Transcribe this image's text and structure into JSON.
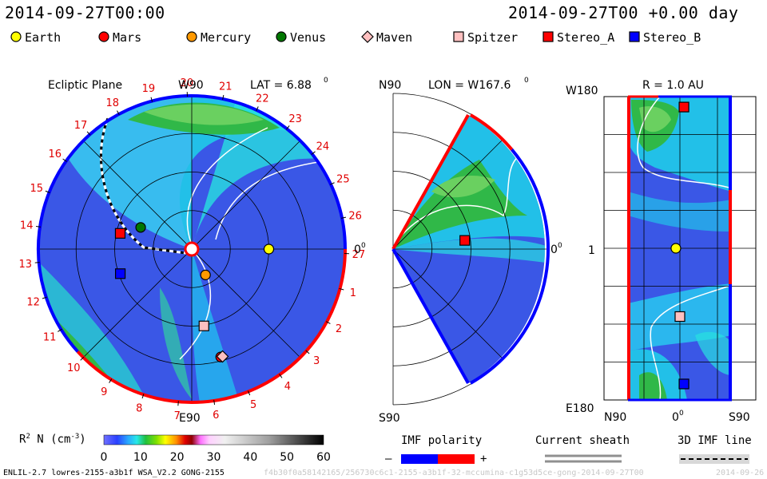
{
  "header": {
    "left_datetime": "2014-09-27T00:00",
    "right_datetime": "2014-09-27T00 +0.00 day"
  },
  "legend": [
    {
      "name": "Earth",
      "shape": "circle",
      "color": "#ffff00"
    },
    {
      "name": "Mars",
      "shape": "circle",
      "color": "#ff0000"
    },
    {
      "name": "Mercury",
      "shape": "circle",
      "color": "#ff9900"
    },
    {
      "name": "Venus",
      "shape": "circle",
      "color": "#007700"
    },
    {
      "name": "Maven",
      "shape": "diamond",
      "color": "#ffc0c0"
    },
    {
      "name": "Spitzer",
      "shape": "square",
      "color": "#ffc0c0"
    },
    {
      "name": "Stereo_A",
      "shape": "square",
      "color": "#ff0000"
    },
    {
      "name": "Stereo_B",
      "shape": "square",
      "color": "#0000ff"
    }
  ],
  "panels": {
    "ecliptic": {
      "title": "Ecliptic Plane",
      "top_label": "W90",
      "bottom_label": "E90",
      "right_label": "0",
      "right_sup": "0",
      "lat_label": "LAT = 6.88",
      "lat_sup": "0",
      "carrington_labels": [
        "19",
        "20",
        "21",
        "22",
        "23",
        "24",
        "25",
        "26",
        "27",
        "1",
        "2",
        "3",
        "4",
        "5",
        "6",
        "7",
        "8",
        "9",
        "10",
        "11",
        "12",
        "13",
        "14",
        "15",
        "16",
        "17",
        "18"
      ]
    },
    "meridional": {
      "top_label": "N90",
      "bottom_label": "S90",
      "lon_label": "LON = W167.6",
      "lon_sup": "0",
      "right_label": "0",
      "right_sup": "0"
    },
    "radial": {
      "title": "R = 1.0 AU",
      "top_left": "W180",
      "mid_left": "1",
      "bottom_left": "E180",
      "bottom_n": "N90",
      "bottom_zero": "0",
      "bottom_zero_sup": "0",
      "bottom_s": "S90"
    }
  },
  "colorbar": {
    "label": "R",
    "label_sup": "2",
    "label_rest": "N (cm",
    "label_exp": "-3",
    "label_close": ")",
    "ticks": [
      "0",
      "10",
      "20",
      "30",
      "40",
      "50",
      "60"
    ],
    "range": [
      0,
      60
    ]
  },
  "imf": {
    "title": "IMF polarity",
    "minus": "–",
    "plus": "+",
    "neg_color": "#0000ff",
    "pos_color": "#ff0000"
  },
  "current_sheath": {
    "title": "Current sheath"
  },
  "imf_line": {
    "title": "3D IMF line"
  },
  "footer": {
    "model": "ENLIL-2.7 lowres-2155-a3b1f WSA_V2.2 GONG-2155",
    "run_id": "f4b30f0a58142165/256730c6c1-2155-a3b1f-32-mccumina-c1g53d5ce-gong-2014-09-27T00",
    "date_stub": "2014-09-26"
  },
  "chart_data": [
    {
      "type": "heatmap",
      "name": "Ecliptic plane density",
      "quantity": "R^2 N (cm^-3)",
      "scale_range": [
        0,
        60
      ],
      "grid_radii_au": [
        0.5,
        1.0,
        1.5,
        2.0
      ],
      "objects": [
        {
          "name": "Earth",
          "angle_deg": 0,
          "r_au": 1.0
        },
        {
          "name": "Mercury",
          "angle_deg": -62,
          "r_au": 0.38
        },
        {
          "name": "Venus",
          "angle_deg": 157,
          "r_au": 0.72
        },
        {
          "name": "Mars",
          "angle_deg": -75,
          "r_au": 1.45
        },
        {
          "name": "Maven",
          "angle_deg": -74,
          "r_au": 1.45
        },
        {
          "name": "Spitzer",
          "angle_deg": -81,
          "r_au": 1.01
        },
        {
          "name": "Stereo_A",
          "angle_deg": 167.6,
          "r_au": 0.95
        },
        {
          "name": "Stereo_B",
          "angle_deg": -161,
          "r_au": 0.98
        }
      ]
    },
    {
      "type": "heatmap",
      "name": "Meridional plane density",
      "lon_deg": 167.6,
      "lat_range": [
        -90,
        90
      ],
      "objects": [
        {
          "name": "Stereo_A",
          "lat_deg": 6.9,
          "r_au": 0.95
        }
      ]
    },
    {
      "type": "heatmap",
      "name": "Radial surface density",
      "r_au": 1.0,
      "lon_range": [
        -180,
        180
      ],
      "lat_range": [
        -90,
        90
      ],
      "objects": [
        {
          "name": "Earth",
          "lon_deg": 0,
          "lat_deg": 7
        },
        {
          "name": "Stereo_A",
          "lon_deg": 167.6,
          "lat_deg": -7
        },
        {
          "name": "Spitzer",
          "lon_deg": -81,
          "lat_deg": 0
        },
        {
          "name": "Stereo_B",
          "lon_deg": -161,
          "lat_deg": -7
        }
      ]
    }
  ]
}
